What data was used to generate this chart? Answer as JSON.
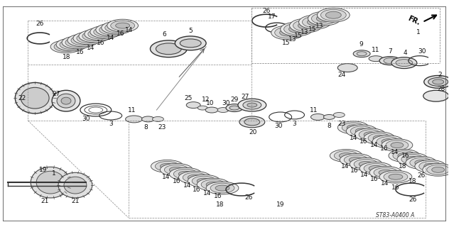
{
  "bg_color": "#ffffff",
  "line_color": "#222222",
  "diagram_ref": "ST83-A0400 A",
  "border_lines": [
    [
      0.02,
      0.04,
      0.98,
      0.04
    ],
    [
      0.02,
      0.04,
      0.02,
      0.96
    ],
    [
      0.02,
      0.96,
      0.98,
      0.96
    ],
    [
      0.98,
      0.04,
      0.98,
      0.96
    ]
  ],
  "diagonal_lines": [
    [
      0.06,
      0.12,
      0.94,
      0.12
    ],
    [
      0.06,
      0.55,
      0.94,
      0.55
    ],
    [
      0.06,
      0.12,
      0.06,
      0.55
    ],
    [
      0.06,
      0.55,
      0.28,
      0.96
    ],
    [
      0.28,
      0.96,
      0.98,
      0.96
    ],
    [
      0.28,
      0.55,
      0.28,
      0.96
    ],
    [
      0.55,
      0.04,
      0.55,
      0.55
    ],
    [
      0.94,
      0.04,
      0.94,
      0.96
    ],
    [
      0.06,
      0.12,
      0.28,
      0.04
    ],
    [
      0.28,
      0.04,
      0.94,
      0.04
    ]
  ]
}
